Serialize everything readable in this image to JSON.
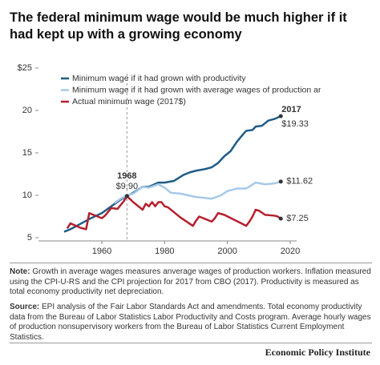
{
  "chart_data": {
    "type": "line",
    "title": "The federal minimum wage would be much higher if it had kept up with a growing economy",
    "xlim": [
      1942,
      2020
    ],
    "xticks": [
      1960,
      1980,
      2000,
      2020
    ],
    "ylim": [
      5,
      25
    ],
    "yticks": [
      5,
      10,
      15,
      20,
      {
        "value": 25,
        "label": "$25"
      }
    ],
    "grid": false,
    "legend": "top-left",
    "series": [
      {
        "name": "Minimum wage if it had grown with productivity",
        "color": "#1f5c87",
        "x": [
          1948,
          1950,
          1953,
          1956,
          1960,
          1963,
          1966,
          1968,
          1970,
          1973,
          1975,
          1978,
          1980,
          1983,
          1986,
          1988,
          1990,
          1993,
          1995,
          1997,
          1999,
          2001,
          2003,
          2005,
          2006,
          2008,
          2009,
          2011,
          2013,
          2015,
          2017
        ],
        "values": [
          5.7,
          6.0,
          6.6,
          7.2,
          7.9,
          8.7,
          9.5,
          9.9,
          10.3,
          11.0,
          11.0,
          11.5,
          11.5,
          11.7,
          12.4,
          12.7,
          12.9,
          13.1,
          13.3,
          13.8,
          14.6,
          15.2,
          16.3,
          17.2,
          17.6,
          17.7,
          18.1,
          18.2,
          18.8,
          19.0,
          19.33
        ]
      },
      {
        "name": "Minimum wage if it had grown with average wages of production and nonsupervisory",
        "color": "#a6c9e8",
        "x": [
          1964,
          1966,
          1968,
          1970,
          1973,
          1975,
          1978,
          1980,
          1982,
          1985,
          1990,
          1995,
          1998,
          2000,
          2003,
          2006,
          2009,
          2012,
          2015,
          2017
        ],
        "values": [
          9.1,
          9.6,
          10.0,
          10.2,
          11.0,
          10.9,
          11.3,
          10.9,
          10.3,
          10.2,
          9.8,
          9.6,
          10.0,
          10.5,
          10.8,
          10.8,
          11.5,
          11.3,
          11.4,
          11.62
        ]
      },
      {
        "name": "Actual minimum wage (2017$)",
        "color": "#b5202e",
        "x": [
          1949,
          1950,
          1953,
          1955,
          1956,
          1960,
          1961,
          1963,
          1965,
          1967,
          1968,
          1970,
          1973,
          1974,
          1975,
          1976,
          1977,
          1978,
          1979,
          1980,
          1981,
          1985,
          1989,
          1990,
          1991,
          1995,
          1996,
          1997,
          1999,
          2006,
          2007,
          2008,
          2009,
          2010,
          2012,
          2015,
          2016,
          2017
        ],
        "values": [
          6.1,
          6.7,
          6.2,
          6.0,
          7.9,
          7.3,
          7.6,
          8.5,
          8.4,
          9.3,
          9.9,
          9.2,
          8.3,
          9.0,
          8.7,
          9.2,
          8.7,
          9.2,
          9.2,
          8.7,
          8.6,
          7.4,
          6.4,
          7.0,
          7.5,
          6.9,
          7.3,
          7.9,
          7.7,
          6.4,
          6.9,
          7.5,
          8.3,
          8.2,
          7.7,
          7.6,
          7.5,
          7.25
        ]
      }
    ],
    "annotations": [
      {
        "x": 1968,
        "x_label": "1968",
        "y": 9.9,
        "y_label": "$9.90"
      },
      {
        "x": 2017,
        "x_label": "2017",
        "y": 19.33,
        "y_label": "$19.33"
      },
      {
        "x": 2017,
        "y": 11.62,
        "y_label": "$11.62"
      },
      {
        "x": 2017,
        "y": 7.25,
        "y_label": "$7.25"
      }
    ]
  },
  "notes": {
    "note_label": "Note:",
    "note": "Growth in average wages measures anverage wages of production workers. Inflation measured using the CPI-U-RS and the CPI projection for 2017 from CBO (2017). Productivity is measured as total economy productivity net depreciation.",
    "source_label": "Source:",
    "source": "EPI analysis of the Fair Labor Standards Act and amendments. Total economy productivity data from the Bureau of Labor Statistics Labor Productivity and Costs program. Average hourly wages of production nonsupervisory workers from the Bureau of Labor Statistics Current Employment Statistics."
  },
  "footer": "Economic Policy Institute"
}
